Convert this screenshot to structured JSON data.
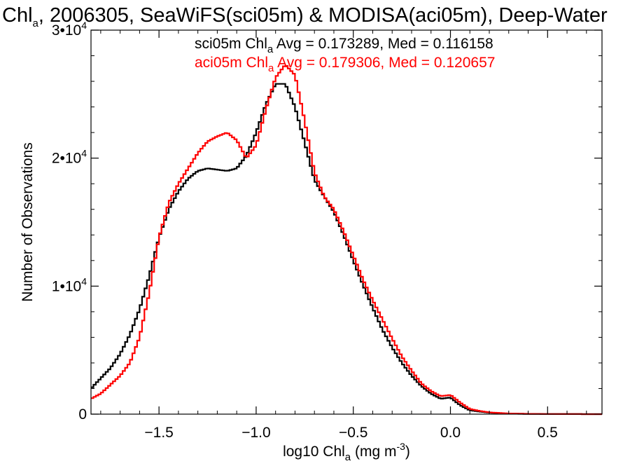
{
  "chart_data": {
    "type": "line",
    "style": "step-histogram",
    "title": {
      "prefix": "Chl",
      "subscript": "a",
      "rest": ", 2006305, SeaWiFS(sci05m) & MODISA(aci05m), Deep-Water"
    },
    "xlabel": {
      "prefix": "log10 Chl",
      "subscript": "a",
      "middle": " (mg m",
      "superscript": "-3",
      "suffix": ")"
    },
    "ylabel": "Number of Observations",
    "xlim": [
      -1.85,
      0.78
    ],
    "ylim": [
      0,
      30000
    ],
    "x_ticks": [
      {
        "value": -1.5,
        "label": "−1.5"
      },
      {
        "value": -1.0,
        "label": "−1.0"
      },
      {
        "value": -0.5,
        "label": "−0.5"
      },
      {
        "value": 0.0,
        "label": "0.0"
      },
      {
        "value": 0.5,
        "label": "0.5"
      }
    ],
    "y_ticks": [
      {
        "value": 0,
        "mantissa": "0",
        "exponent": ""
      },
      {
        "value": 10000,
        "mantissa": "1•10",
        "exponent": "4"
      },
      {
        "value": 20000,
        "mantissa": "2•10",
        "exponent": "4"
      },
      {
        "value": 30000,
        "mantissa": "3•10",
        "exponent": "4"
      }
    ],
    "grid": false,
    "legend_position": "top-center",
    "series": [
      {
        "name": "sci05m",
        "color": "#000000",
        "legend": {
          "prefix": "sci05m Chl",
          "subscript": "a",
          "rest": " Avg = 0.173289, Med = 0.116158"
        },
        "x": [
          -1.85,
          -1.8,
          -1.75,
          -1.7,
          -1.65,
          -1.6,
          -1.55,
          -1.5,
          -1.45,
          -1.4,
          -1.35,
          -1.3,
          -1.25,
          -1.2,
          -1.15,
          -1.1,
          -1.05,
          -1.0,
          -0.95,
          -0.9,
          -0.85,
          -0.8,
          -0.75,
          -0.7,
          -0.65,
          -0.6,
          -0.55,
          -0.5,
          -0.45,
          -0.4,
          -0.35,
          -0.3,
          -0.25,
          -0.2,
          -0.15,
          -0.1,
          -0.05,
          0.0,
          0.05,
          0.1,
          0.15,
          0.2,
          0.25,
          0.3,
          0.4,
          0.5,
          0.6,
          0.7,
          0.78
        ],
        "y": [
          2000,
          2800,
          3600,
          4700,
          6200,
          8200,
          10800,
          13800,
          16000,
          17400,
          18400,
          19000,
          19200,
          19100,
          19000,
          19200,
          20200,
          22000,
          24200,
          25800,
          25800,
          24000,
          21200,
          18300,
          17000,
          15800,
          14000,
          12000,
          10100,
          8300,
          6600,
          5200,
          4000,
          3000,
          2200,
          1600,
          1200,
          1300,
          700,
          300,
          200,
          120,
          80,
          40,
          20,
          10,
          5,
          2,
          0
        ]
      },
      {
        "name": "aci05m",
        "color": "#ff0000",
        "legend": {
          "prefix": "aci05m Chl",
          "subscript": "a",
          "rest": " Avg = 0.179306, Med = 0.120657"
        },
        "x": [
          -1.85,
          -1.8,
          -1.75,
          -1.7,
          -1.65,
          -1.6,
          -1.55,
          -1.5,
          -1.45,
          -1.4,
          -1.35,
          -1.3,
          -1.25,
          -1.2,
          -1.15,
          -1.1,
          -1.05,
          -1.0,
          -0.95,
          -0.9,
          -0.85,
          -0.8,
          -0.75,
          -0.7,
          -0.65,
          -0.6,
          -0.55,
          -0.5,
          -0.45,
          -0.4,
          -0.35,
          -0.3,
          -0.25,
          -0.2,
          -0.15,
          -0.1,
          -0.05,
          0.0,
          0.05,
          0.1,
          0.15,
          0.2,
          0.25,
          0.3,
          0.4,
          0.5,
          0.6,
          0.7,
          0.78
        ],
        "y": [
          1200,
          1600,
          2300,
          3000,
          4000,
          6000,
          9500,
          13800,
          16500,
          18000,
          19200,
          20400,
          21300,
          21700,
          22000,
          21400,
          20000,
          21000,
          23800,
          26300,
          27300,
          26500,
          22900,
          18900,
          17000,
          16000,
          14300,
          12400,
          10500,
          8900,
          7400,
          5900,
          4500,
          3400,
          2400,
          1800,
          1400,
          1500,
          900,
          400,
          250,
          140,
          90,
          50,
          25,
          10,
          5,
          2,
          0
        ]
      }
    ]
  }
}
